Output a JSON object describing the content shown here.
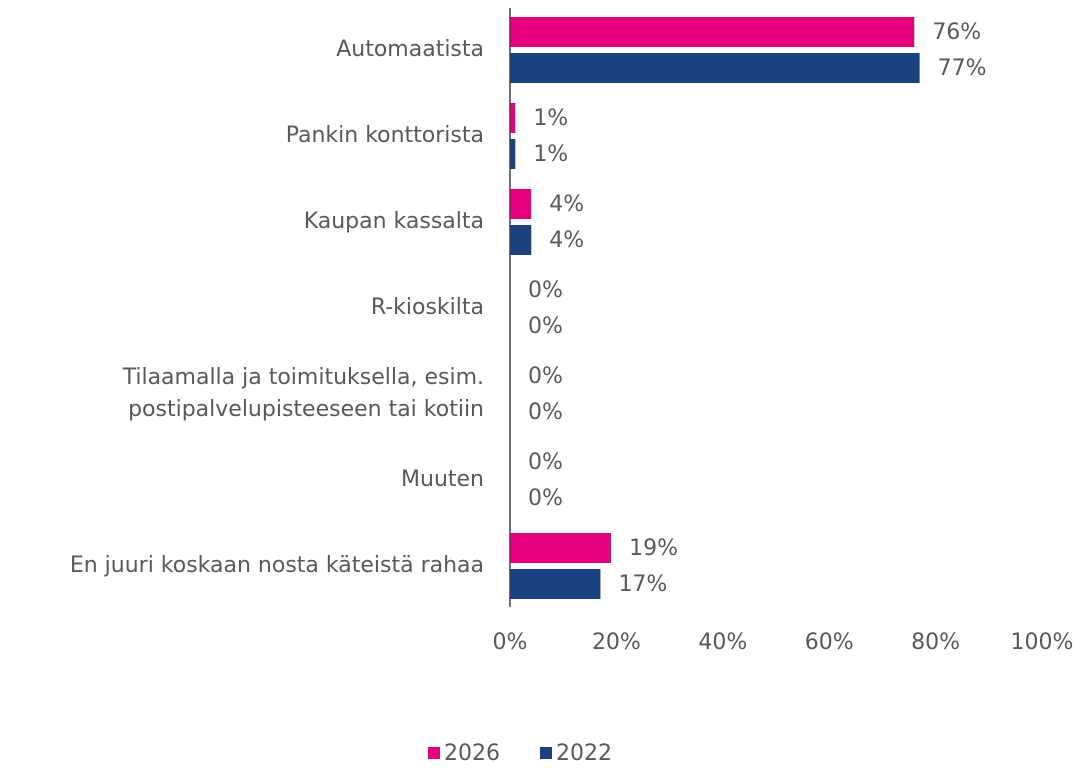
{
  "chart_data": {
    "type": "bar",
    "orientation": "horizontal",
    "categories": [
      "Automaatista",
      "Pankin konttorista",
      "Kaupan kassalta",
      "R-kioskilta",
      "Tilaamalla ja toimituksella, esim. postipalvelupisteeseen tai kotiin",
      "Muuten",
      "En juuri koskaan nosta käteistä rahaa"
    ],
    "series": [
      {
        "name": "2026",
        "color": "#e6007e",
        "values": [
          76,
          1,
          4,
          0,
          0,
          0,
          19
        ],
        "value_labels": [
          "76%",
          "1%",
          "4%",
          "0%",
          "0%",
          "0%",
          "19%"
        ]
      },
      {
        "name": "2022",
        "color": "#1a4282",
        "values": [
          77,
          1,
          4,
          0,
          0,
          0,
          17
        ],
        "value_labels": [
          "77%",
          "1%",
          "4%",
          "0%",
          "0%",
          "0%",
          "17%"
        ]
      }
    ],
    "xlim": [
      0,
      100
    ],
    "xticks": [
      {
        "value": 0,
        "label": "0%"
      },
      {
        "value": 20,
        "label": "20%"
      },
      {
        "value": 40,
        "label": "40%"
      },
      {
        "value": 60,
        "label": "60%"
      },
      {
        "value": 80,
        "label": "80%"
      },
      {
        "value": 100,
        "label": "100%"
      }
    ],
    "legend": "bottom"
  }
}
